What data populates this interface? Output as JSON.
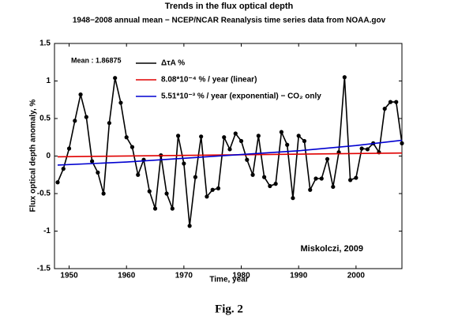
{
  "chart_data": {
    "type": "line",
    "title": "Trends in the flux optical depth",
    "subtitle": "1948−2008 annual mean − NCEP/NCAR Reanalysis time series data from NOAA.gov",
    "xlabel": "Time, year",
    "ylabel": "Flux optical depth anomaly, %",
    "annotation": "Mean : 1.86875",
    "credit": "Miskolczi, 2009",
    "caption": "Fig. 2",
    "xlim": [
      1948,
      2008
    ],
    "ylim": [
      -1.5,
      1.5
    ],
    "xticks": [
      1950,
      1960,
      1970,
      1980,
      1990,
      2000
    ],
    "yticks": [
      -1.5,
      -1,
      -0.5,
      0,
      0.5,
      1,
      1.5
    ],
    "grid": false,
    "legend": "upper left",
    "series": [
      {
        "name": "ΔτA %",
        "color": "#000000",
        "markers": true,
        "x": [
          1948,
          1949,
          1950,
          1951,
          1952,
          1953,
          1954,
          1955,
          1956,
          1957,
          1958,
          1959,
          1960,
          1961,
          1962,
          1963,
          1964,
          1965,
          1966,
          1967,
          1968,
          1969,
          1970,
          1971,
          1972,
          1973,
          1974,
          1975,
          1976,
          1977,
          1978,
          1979,
          1980,
          1981,
          1982,
          1983,
          1984,
          1985,
          1986,
          1987,
          1988,
          1989,
          1990,
          1991,
          1992,
          1993,
          1994,
          1995,
          1996,
          1997,
          1998,
          1999,
          2000,
          2001,
          2002,
          2003,
          2004,
          2005,
          2006,
          2007,
          2008
        ],
        "values": [
          -0.35,
          -0.17,
          0.1,
          0.47,
          0.82,
          0.52,
          -0.07,
          -0.22,
          -0.5,
          0.44,
          1.04,
          0.71,
          0.25,
          0.12,
          -0.25,
          -0.05,
          -0.47,
          -0.7,
          0.01,
          -0.5,
          -0.7,
          0.27,
          -0.1,
          -0.93,
          -0.28,
          0.26,
          -0.54,
          -0.45,
          -0.43,
          0.25,
          0.09,
          0.3,
          0.2,
          -0.05,
          -0.25,
          0.27,
          -0.28,
          -0.4,
          -0.37,
          0.32,
          0.15,
          -0.56,
          0.27,
          0.2,
          -0.45,
          -0.3,
          -0.3,
          -0.04,
          -0.41,
          0.05,
          1.05,
          -0.32,
          -0.29,
          0.1,
          0.09,
          0.17,
          0.05,
          0.63,
          0.72,
          0.72,
          0.17
        ]
      },
      {
        "name": "8.08*10⁻⁴ % / year (linear)",
        "color": "#e00000",
        "markers": false,
        "x": [
          1948,
          2008
        ],
        "values": [
          -0.01,
          0.04
        ]
      },
      {
        "name": "5.51*10⁻³ % / year (exponential) − CO₂ only",
        "color": "#0000d0",
        "markers": false,
        "x": [
          1948,
          1960,
          1970,
          1980,
          1990,
          2000,
          2008
        ],
        "values": [
          -0.12,
          -0.08,
          -0.03,
          0.02,
          0.07,
          0.14,
          0.21
        ]
      }
    ]
  }
}
